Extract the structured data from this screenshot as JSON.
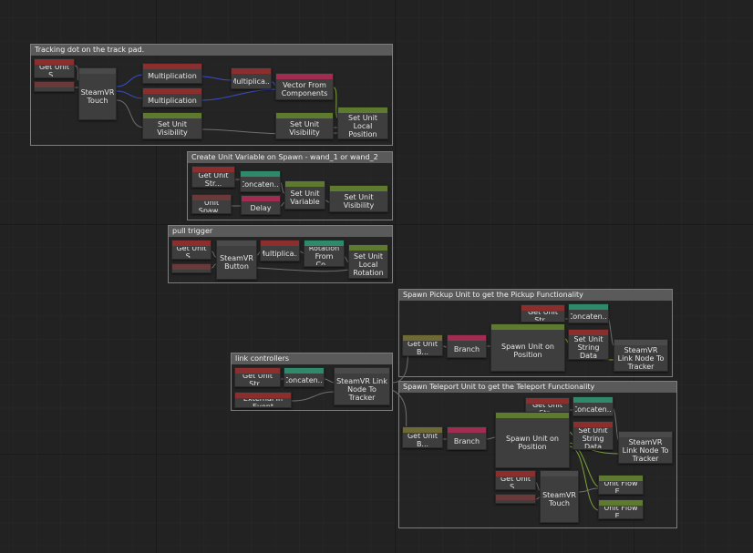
{
  "colors": {
    "red": "#8a2e2e",
    "green": "#5d7a2e",
    "pink": "#a02c52",
    "teal": "#2e8a6a",
    "olive": "#6e6a36",
    "redDark": "#6a3a3a"
  },
  "groups": [
    {
      "id": "tracking-dot",
      "title": "Tracking dot on the track pad."
    },
    {
      "id": "create-unit-variable",
      "title": "Create Unit Variable on Spawn - wand_1 or wand_2"
    },
    {
      "id": "pull-trigger",
      "title": "pull trigger"
    },
    {
      "id": "spawn-pickup",
      "title": "Spawn Pickup Unit to get the Pickup Functionality"
    },
    {
      "id": "link-controllers",
      "title": "link controllers"
    },
    {
      "id": "spawn-teleport",
      "title": "Spawn Teleport Unit to get the Teleport Functionality"
    }
  ],
  "nodes": [
    {
      "label": "Get Unit S...",
      "color": "red"
    },
    {
      "label": "",
      "color": "redDark"
    },
    {
      "label": "SteamVR Touch",
      "color": ""
    },
    {
      "label": "Multiplication",
      "color": "red"
    },
    {
      "label": "Multiplication",
      "color": "red"
    },
    {
      "label": "Multiplica...",
      "color": "red"
    },
    {
      "label": "Vector From Components",
      "color": "pink"
    },
    {
      "label": "Set Unit Visibility",
      "color": "green"
    },
    {
      "label": "Set Unit Visibility",
      "color": "green"
    },
    {
      "label": "Set Unit Local Position",
      "color": "green"
    },
    {
      "label": "Get Unit Str...",
      "color": "red"
    },
    {
      "label": "Concaten...",
      "color": "teal"
    },
    {
      "label": "Unit Spaw...",
      "color": "redDark"
    },
    {
      "label": "Delay",
      "color": "pink"
    },
    {
      "label": "Set Unit Variable",
      "color": "green"
    },
    {
      "label": "Set Unit Visibility",
      "color": "green"
    },
    {
      "label": "Get Unit S...",
      "color": "red"
    },
    {
      "label": "",
      "color": "redDark"
    },
    {
      "label": "SteamVR Button",
      "color": ""
    },
    {
      "label": "Multiplica...",
      "color": "red"
    },
    {
      "label": "Rotation From Co...",
      "color": "teal"
    },
    {
      "label": "Set Unit Local Rotation",
      "color": "green"
    },
    {
      "label": "Get Unit Str...",
      "color": "red"
    },
    {
      "label": "Concaten...",
      "color": "teal"
    },
    {
      "label": "Get Unit B...",
      "color": "olive"
    },
    {
      "label": "Branch",
      "color": "pink"
    },
    {
      "label": "Spawn Unit on Position",
      "color": "green"
    },
    {
      "label": "Set Unit String Data",
      "color": "red"
    },
    {
      "label": "SteamVR Link Node To Tracker",
      "color": ""
    },
    {
      "label": "Get Unit Str...",
      "color": "red"
    },
    {
      "label": "Concaten...",
      "color": "teal"
    },
    {
      "label": "External In Event",
      "color": "red"
    },
    {
      "label": "SteamVR Link Node To Tracker",
      "color": ""
    },
    {
      "label": "Get Unit Str...",
      "color": "red"
    },
    {
      "label": "Concaten...",
      "color": "teal"
    },
    {
      "label": "Get Unit B...",
      "color": "olive"
    },
    {
      "label": "Branch",
      "color": "pink"
    },
    {
      "label": "Spawn Unit on Position",
      "color": "green"
    },
    {
      "label": "Set Unit String Data",
      "color": "red"
    },
    {
      "label": "SteamVR Link Node To Tracker",
      "color": ""
    },
    {
      "label": "Get Unit S...",
      "color": "red"
    },
    {
      "label": "",
      "color": "redDark"
    },
    {
      "label": "SteamVR Touch",
      "color": ""
    },
    {
      "label": "Unit Flow E...",
      "color": "green"
    },
    {
      "label": "Unit Flow E...",
      "color": "green"
    }
  ]
}
